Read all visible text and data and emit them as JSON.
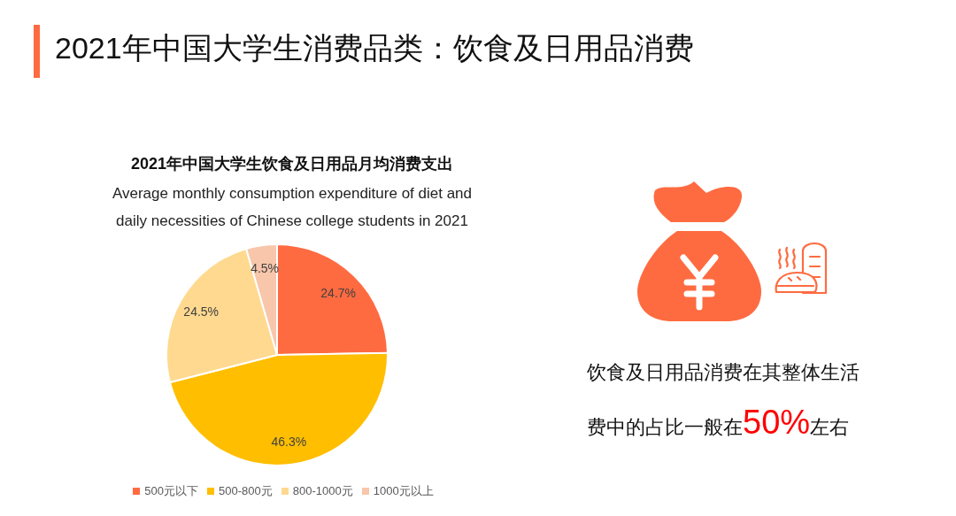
{
  "chart_data": {
    "type": "pie",
    "title": "2021年中国大学生消费品类：饮食及日用品消费",
    "subtitle": "2021年中国大学生饮食及日用品月均消费支出",
    "categories": [
      "500元以下",
      "500-800元",
      "800-1000元",
      "1000元以上"
    ],
    "values": [
      24.7,
      46.3,
      24.5,
      4.5
    ],
    "colors": [
      "#ff6b40",
      "#ffbe00",
      "#fed98f",
      "#f8c6aa"
    ],
    "value_labels": [
      "24.7%",
      "46.3%",
      "24.5%",
      "4.5%"
    ],
    "legend": "bottom",
    "annotations": [
      "Average monthly consumption expenditure of diet and daily necessities of Chinese college students in 2021",
      "饮食及日用品消费在其整体生活费中的占比一般在50%左右"
    ]
  }
}
